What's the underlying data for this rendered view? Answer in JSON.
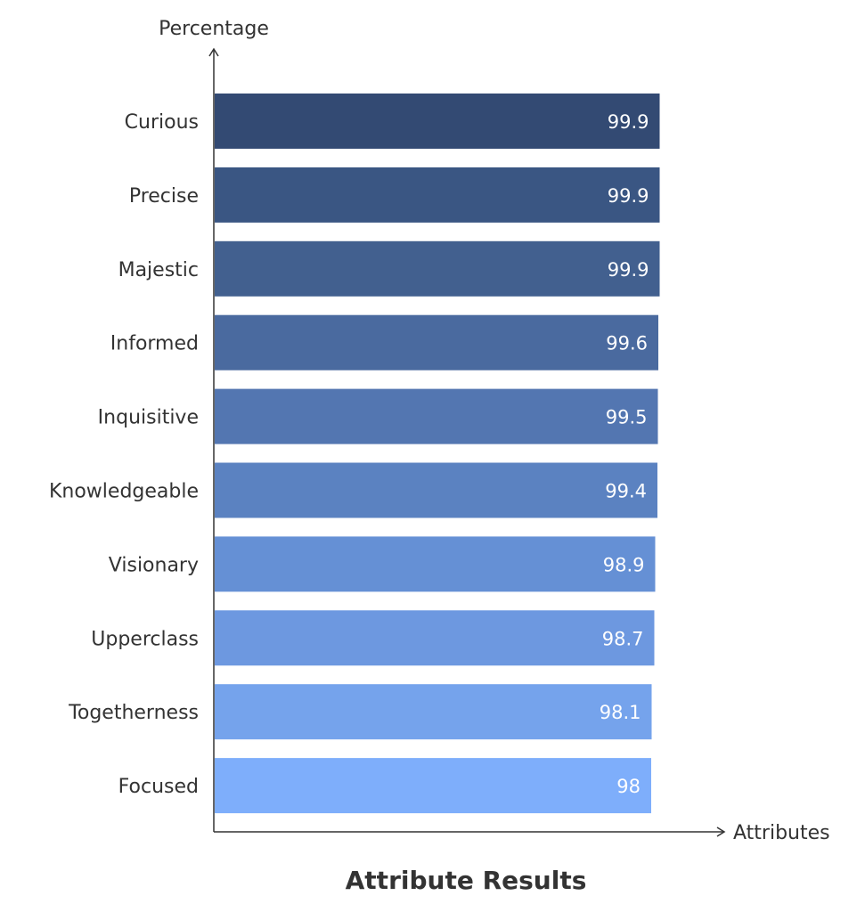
{
  "chart_data": {
    "type": "bar",
    "orientation": "horizontal",
    "title": "Attribute Results",
    "xlabel": "Attributes",
    "ylabel": "Percentage",
    "categories": [
      "Curious",
      "Precise",
      "Majestic",
      "Informed",
      "Inquisitive",
      "Knowledgeable",
      "Visionary",
      "Upperclass",
      "Togetherness",
      "Focused"
    ],
    "values": [
      99.9,
      99.9,
      99.9,
      99.6,
      99.5,
      99.4,
      98.9,
      98.7,
      98.1,
      98
    ],
    "value_labels": [
      "99.9",
      "99.9",
      "99.9",
      "99.6",
      "99.5",
      "99.4",
      "98.9",
      "98.7",
      "98.1",
      "98"
    ],
    "xlim": [
      0,
      100
    ],
    "grid": false,
    "legend": "none",
    "colors": [
      "#334a73",
      "#3a5683",
      "#42608f",
      "#4a6a9f",
      "#5376b1",
      "#5b82c1",
      "#6590d5",
      "#6d98e0",
      "#75a3ec",
      "#7eaefb"
    ],
    "axis_color": "#333333"
  }
}
